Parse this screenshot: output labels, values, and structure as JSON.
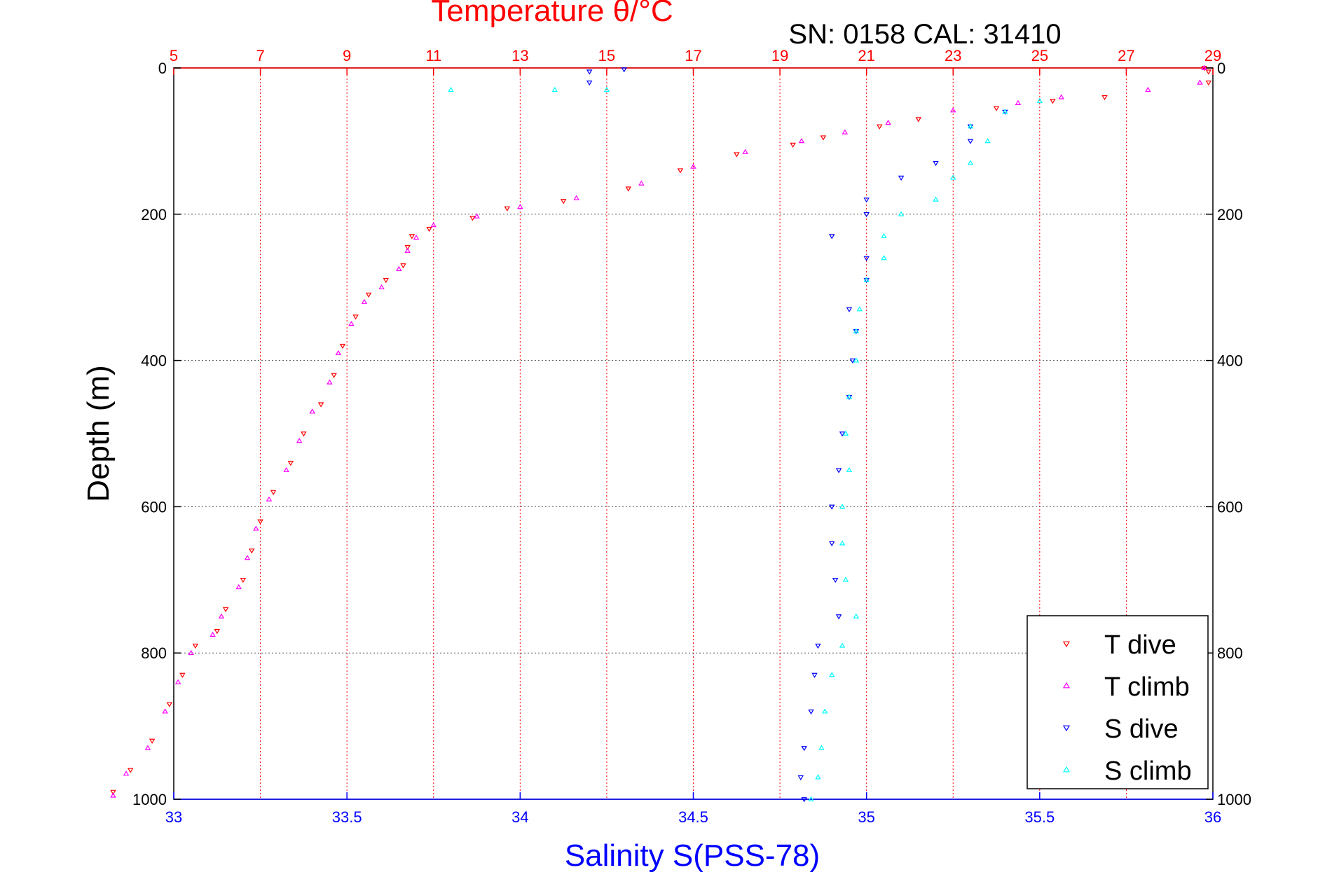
{
  "header": {
    "title": "Temperature θ/°C",
    "subtitle": "SN: 0158  CAL: 31410"
  },
  "axes": {
    "ylabel": "Depth (m)",
    "xlabel": "Salinity S(PSS-78)",
    "temp_ticks": [
      "5",
      "7",
      "9",
      "11",
      "13",
      "15",
      "17",
      "19",
      "21",
      "23",
      "25",
      "27",
      "29"
    ],
    "sal_ticks": [
      "33",
      "33.5",
      "34",
      "34.5",
      "35",
      "35.5",
      "36"
    ],
    "depth_ticks": [
      "0",
      "200",
      "400",
      "600",
      "800",
      "1000"
    ]
  },
  "legend": {
    "placement": "bottom-right",
    "items": [
      {
        "label": "T dive",
        "color": "#ff0000",
        "marker": "triangle-down"
      },
      {
        "label": "T climb",
        "color": "#ff00ff",
        "marker": "triangle-up"
      },
      {
        "label": "S dive",
        "color": "#0000ff",
        "marker": "triangle-down"
      },
      {
        "label": "S climb",
        "color": "#00ffff",
        "marker": "triangle-up"
      }
    ]
  },
  "colors": {
    "temperature_axis": "#ff0000",
    "salinity_axis": "#0000ff",
    "grid_temperature": "#ff0000",
    "grid_depth": "#555555"
  },
  "chart_data": {
    "type": "scatter",
    "title": "Temperature θ/°C",
    "subtitle": "SN: 0158  CAL: 31410",
    "ylabel": "Depth (m)",
    "xlabel": "Salinity S(PSS-78)",
    "x_top_label": "Temperature θ/°C",
    "ylim": [
      1000,
      0
    ],
    "xlim_temperature": [
      5,
      29
    ],
    "xlim_salinity": [
      33,
      36
    ],
    "grid": true,
    "legend_placement": "bottom-right",
    "series": [
      {
        "name": "T dive",
        "axis": "temperature",
        "points": [
          [
            28.8,
            0
          ],
          [
            28.9,
            5
          ],
          [
            28.9,
            20
          ],
          [
            26.5,
            40
          ],
          [
            25.3,
            45
          ],
          [
            24.0,
            55
          ],
          [
            22.2,
            70
          ],
          [
            21.3,
            80
          ],
          [
            20.0,
            95
          ],
          [
            19.3,
            105
          ],
          [
            18.0,
            118
          ],
          [
            16.7,
            140
          ],
          [
            15.5,
            165
          ],
          [
            14.0,
            182
          ],
          [
            12.7,
            192
          ],
          [
            11.9,
            205
          ],
          [
            10.9,
            220
          ],
          [
            10.5,
            230
          ],
          [
            10.4,
            245
          ],
          [
            10.3,
            270
          ],
          [
            9.9,
            290
          ],
          [
            9.5,
            310
          ],
          [
            9.2,
            340
          ],
          [
            8.9,
            380
          ],
          [
            8.7,
            420
          ],
          [
            8.4,
            460
          ],
          [
            8.0,
            500
          ],
          [
            7.7,
            540
          ],
          [
            7.3,
            580
          ],
          [
            7.0,
            620
          ],
          [
            6.8,
            660
          ],
          [
            6.6,
            700
          ],
          [
            6.2,
            740
          ],
          [
            6.0,
            770
          ],
          [
            5.5,
            790
          ],
          [
            5.2,
            830
          ],
          [
            4.9,
            870
          ],
          [
            4.5,
            920
          ],
          [
            4.0,
            960
          ],
          [
            3.6,
            990
          ]
        ]
      },
      {
        "name": "T climb",
        "axis": "temperature",
        "points": [
          [
            28.8,
            0
          ],
          [
            28.7,
            20
          ],
          [
            27.5,
            30
          ],
          [
            25.5,
            40
          ],
          [
            24.5,
            48
          ],
          [
            23.0,
            58
          ],
          [
            21.5,
            75
          ],
          [
            20.5,
            88
          ],
          [
            19.5,
            100
          ],
          [
            18.2,
            115
          ],
          [
            17.0,
            135
          ],
          [
            15.8,
            158
          ],
          [
            14.3,
            178
          ],
          [
            13.0,
            190
          ],
          [
            12.0,
            203
          ],
          [
            11.0,
            215
          ],
          [
            10.6,
            232
          ],
          [
            10.4,
            250
          ],
          [
            10.2,
            275
          ],
          [
            9.8,
            300
          ],
          [
            9.4,
            320
          ],
          [
            9.1,
            350
          ],
          [
            8.8,
            390
          ],
          [
            8.6,
            430
          ],
          [
            8.2,
            470
          ],
          [
            7.9,
            510
          ],
          [
            7.6,
            550
          ],
          [
            7.2,
            590
          ],
          [
            6.9,
            630
          ],
          [
            6.7,
            670
          ],
          [
            6.5,
            710
          ],
          [
            6.1,
            750
          ],
          [
            5.9,
            775
          ],
          [
            5.4,
            800
          ],
          [
            5.1,
            840
          ],
          [
            4.8,
            880
          ],
          [
            4.4,
            930
          ],
          [
            3.9,
            965
          ],
          [
            3.6,
            995
          ]
        ]
      },
      {
        "name": "S dive",
        "axis": "salinity",
        "points": [
          [
            34.2,
            5
          ],
          [
            34.3,
            2
          ],
          [
            34.2,
            20
          ],
          [
            35.4,
            60
          ],
          [
            35.3,
            80
          ],
          [
            35.3,
            100
          ],
          [
            35.2,
            130
          ],
          [
            35.1,
            150
          ],
          [
            35.0,
            180
          ],
          [
            35.0,
            200
          ],
          [
            34.9,
            230
          ],
          [
            35.0,
            260
          ],
          [
            35.0,
            290
          ],
          [
            34.95,
            330
          ],
          [
            34.97,
            360
          ],
          [
            34.96,
            400
          ],
          [
            34.95,
            450
          ],
          [
            34.93,
            500
          ],
          [
            34.92,
            550
          ],
          [
            34.9,
            600
          ],
          [
            34.9,
            650
          ],
          [
            34.91,
            700
          ],
          [
            34.92,
            750
          ],
          [
            34.86,
            790
          ],
          [
            34.85,
            830
          ],
          [
            34.84,
            880
          ],
          [
            34.82,
            930
          ],
          [
            34.81,
            970
          ],
          [
            34.82,
            1000
          ]
        ]
      },
      {
        "name": "S climb",
        "axis": "salinity",
        "points": [
          [
            33.8,
            30
          ],
          [
            34.1,
            30
          ],
          [
            34.25,
            30
          ],
          [
            35.5,
            45
          ],
          [
            35.4,
            60
          ],
          [
            35.3,
            80
          ],
          [
            35.35,
            100
          ],
          [
            35.3,
            130
          ],
          [
            35.25,
            150
          ],
          [
            35.2,
            180
          ],
          [
            35.1,
            200
          ],
          [
            35.05,
            230
          ],
          [
            35.05,
            260
          ],
          [
            35.0,
            290
          ],
          [
            34.98,
            330
          ],
          [
            34.97,
            360
          ],
          [
            34.97,
            400
          ],
          [
            34.95,
            450
          ],
          [
            34.94,
            500
          ],
          [
            34.95,
            550
          ],
          [
            34.93,
            600
          ],
          [
            34.93,
            650
          ],
          [
            34.94,
            700
          ],
          [
            34.97,
            750
          ],
          [
            34.93,
            790
          ],
          [
            34.9,
            830
          ],
          [
            34.88,
            880
          ],
          [
            34.87,
            930
          ],
          [
            34.86,
            970
          ],
          [
            34.84,
            1000
          ]
        ]
      }
    ]
  }
}
